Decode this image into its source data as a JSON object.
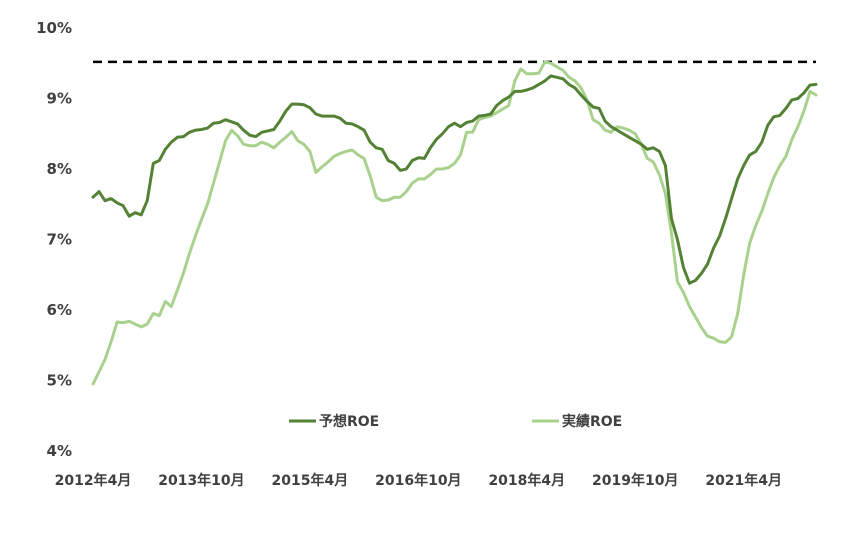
{
  "chart_data": {
    "type": "line",
    "title": "",
    "xlabel": "",
    "ylabel": "",
    "ylim": [
      4,
      10
    ],
    "xlim": [
      "2012-04",
      "2022-03"
    ],
    "yticks": [
      "4%",
      "5%",
      "6%",
      "7%",
      "8%",
      "9%",
      "10%"
    ],
    "xticks": [
      {
        "label": "2012年4月",
        "date": "2012-04"
      },
      {
        "label": "2013年10月",
        "date": "2013-10"
      },
      {
        "label": "2015年4月",
        "date": "2015-04"
      },
      {
        "label": "2016年10月",
        "date": "2016-10"
      },
      {
        "label": "2018年4月",
        "date": "2018-04"
      },
      {
        "label": "2019年10月",
        "date": "2019-10"
      },
      {
        "label": "2021年4月",
        "date": "2021-04"
      }
    ],
    "grid": false,
    "legend_position": "bottom-center",
    "reference_line": {
      "y": 9.52,
      "style": "dashed",
      "color": "#000000"
    },
    "series": [
      {
        "name": "予想ROE",
        "color": "#548235",
        "points": [
          [
            "2012-04",
            7.6
          ],
          [
            "2012-05",
            7.68
          ],
          [
            "2012-06",
            7.55
          ],
          [
            "2012-07",
            7.58
          ],
          [
            "2012-08",
            7.52
          ],
          [
            "2012-09",
            7.48
          ],
          [
            "2012-10",
            7.33
          ],
          [
            "2012-11",
            7.38
          ],
          [
            "2012-12",
            7.35
          ],
          [
            "2013-01",
            7.55
          ],
          [
            "2013-02",
            8.08
          ],
          [
            "2013-03",
            8.12
          ],
          [
            "2013-04",
            8.28
          ],
          [
            "2013-05",
            8.38
          ],
          [
            "2013-06",
            8.45
          ],
          [
            "2013-07",
            8.46
          ],
          [
            "2013-08",
            8.52
          ],
          [
            "2013-09",
            8.55
          ],
          [
            "2013-10",
            8.56
          ],
          [
            "2013-11",
            8.58
          ],
          [
            "2013-12",
            8.65
          ],
          [
            "2014-01",
            8.66
          ],
          [
            "2014-02",
            8.7
          ],
          [
            "2014-03",
            8.67
          ],
          [
            "2014-04",
            8.64
          ],
          [
            "2014-05",
            8.55
          ],
          [
            "2014-06",
            8.48
          ],
          [
            "2014-07",
            8.46
          ],
          [
            "2014-08",
            8.52
          ],
          [
            "2014-09",
            8.54
          ],
          [
            "2014-10",
            8.56
          ],
          [
            "2014-11",
            8.68
          ],
          [
            "2014-12",
            8.82
          ],
          [
            "2015-01",
            8.92
          ],
          [
            "2015-02",
            8.92
          ],
          [
            "2015-03",
            8.91
          ],
          [
            "2015-04",
            8.87
          ],
          [
            "2015-05",
            8.78
          ],
          [
            "2015-06",
            8.75
          ],
          [
            "2015-07",
            8.75
          ],
          [
            "2015-08",
            8.75
          ],
          [
            "2015-09",
            8.72
          ],
          [
            "2015-10",
            8.65
          ],
          [
            "2015-11",
            8.64
          ],
          [
            "2015-12",
            8.6
          ],
          [
            "2016-01",
            8.55
          ],
          [
            "2016-02",
            8.38
          ],
          [
            "2016-03",
            8.3
          ],
          [
            "2016-04",
            8.28
          ],
          [
            "2016-05",
            8.12
          ],
          [
            "2016-06",
            8.08
          ],
          [
            "2016-07",
            7.98
          ],
          [
            "2016-08",
            8.0
          ],
          [
            "2016-09",
            8.12
          ],
          [
            "2016-10",
            8.16
          ],
          [
            "2016-11",
            8.15
          ],
          [
            "2016-12",
            8.3
          ],
          [
            "2017-01",
            8.42
          ],
          [
            "2017-02",
            8.5
          ],
          [
            "2017-03",
            8.6
          ],
          [
            "2017-04",
            8.65
          ],
          [
            "2017-05",
            8.6
          ],
          [
            "2017-06",
            8.66
          ],
          [
            "2017-07",
            8.68
          ],
          [
            "2017-08",
            8.75
          ],
          [
            "2017-09",
            8.76
          ],
          [
            "2017-10",
            8.78
          ],
          [
            "2017-11",
            8.9
          ],
          [
            "2017-12",
            8.97
          ],
          [
            "2018-01",
            9.02
          ],
          [
            "2018-02",
            9.1
          ],
          [
            "2018-03",
            9.1
          ],
          [
            "2018-04",
            9.12
          ],
          [
            "2018-05",
            9.15
          ],
          [
            "2018-06",
            9.2
          ],
          [
            "2018-07",
            9.25
          ],
          [
            "2018-08",
            9.32
          ],
          [
            "2018-09",
            9.3
          ],
          [
            "2018-10",
            9.28
          ],
          [
            "2018-11",
            9.2
          ],
          [
            "2018-12",
            9.15
          ],
          [
            "2019-01",
            9.05
          ],
          [
            "2019-02",
            8.96
          ],
          [
            "2019-03",
            8.88
          ],
          [
            "2019-04",
            8.86
          ],
          [
            "2019-05",
            8.68
          ],
          [
            "2019-06",
            8.6
          ],
          [
            "2019-07",
            8.55
          ],
          [
            "2019-08",
            8.5
          ],
          [
            "2019-09",
            8.45
          ],
          [
            "2019-10",
            8.4
          ],
          [
            "2019-11",
            8.35
          ],
          [
            "2019-12",
            8.28
          ],
          [
            "2020-01",
            8.3
          ],
          [
            "2020-02",
            8.25
          ],
          [
            "2020-03",
            8.05
          ],
          [
            "2020-04",
            7.3
          ],
          [
            "2020-05",
            7.0
          ],
          [
            "2020-06",
            6.6
          ],
          [
            "2020-07",
            6.38
          ],
          [
            "2020-08",
            6.42
          ],
          [
            "2020-09",
            6.52
          ],
          [
            "2020-10",
            6.65
          ],
          [
            "2020-11",
            6.88
          ],
          [
            "2020-12",
            7.05
          ],
          [
            "2021-01",
            7.3
          ],
          [
            "2021-02",
            7.58
          ],
          [
            "2021-03",
            7.86
          ],
          [
            "2021-04",
            8.05
          ],
          [
            "2021-05",
            8.2
          ],
          [
            "2021-06",
            8.25
          ],
          [
            "2021-07",
            8.38
          ],
          [
            "2021-08",
            8.62
          ],
          [
            "2021-09",
            8.74
          ],
          [
            "2021-10",
            8.76
          ],
          [
            "2021-11",
            8.86
          ],
          [
            "2021-12",
            8.98
          ],
          [
            "2022-01",
            9.0
          ],
          [
            "2022-02",
            9.08
          ],
          [
            "2022-03",
            9.19
          ],
          [
            "2022-04",
            9.2
          ]
        ]
      },
      {
        "name": "実績ROE",
        "color": "#A9D18E",
        "points": [
          [
            "2012-04",
            4.95
          ],
          [
            "2012-05",
            5.12
          ],
          [
            "2012-06",
            5.3
          ],
          [
            "2012-07",
            5.55
          ],
          [
            "2012-08",
            5.83
          ],
          [
            "2012-09",
            5.82
          ],
          [
            "2012-10",
            5.84
          ],
          [
            "2012-11",
            5.8
          ],
          [
            "2012-12",
            5.76
          ],
          [
            "2013-01",
            5.8
          ],
          [
            "2013-02",
            5.95
          ],
          [
            "2013-03",
            5.92
          ],
          [
            "2013-04",
            6.12
          ],
          [
            "2013-05",
            6.05
          ],
          [
            "2013-06",
            6.28
          ],
          [
            "2013-07",
            6.52
          ],
          [
            "2013-08",
            6.8
          ],
          [
            "2013-09",
            7.05
          ],
          [
            "2013-10",
            7.28
          ],
          [
            "2013-11",
            7.5
          ],
          [
            "2013-12",
            7.8
          ],
          [
            "2014-01",
            8.1
          ],
          [
            "2014-02",
            8.4
          ],
          [
            "2014-03",
            8.55
          ],
          [
            "2014-04",
            8.47
          ],
          [
            "2014-05",
            8.35
          ],
          [
            "2014-06",
            8.33
          ],
          [
            "2014-07",
            8.33
          ],
          [
            "2014-08",
            8.38
          ],
          [
            "2014-09",
            8.35
          ],
          [
            "2014-10",
            8.3
          ],
          [
            "2014-11",
            8.38
          ],
          [
            "2014-12",
            8.45
          ],
          [
            "2015-01",
            8.53
          ],
          [
            "2015-02",
            8.4
          ],
          [
            "2015-03",
            8.35
          ],
          [
            "2015-04",
            8.25
          ],
          [
            "2015-05",
            7.95
          ],
          [
            "2015-06",
            8.03
          ],
          [
            "2015-07",
            8.1
          ],
          [
            "2015-08",
            8.18
          ],
          [
            "2015-09",
            8.22
          ],
          [
            "2015-10",
            8.25
          ],
          [
            "2015-11",
            8.27
          ],
          [
            "2015-12",
            8.2
          ],
          [
            "2016-01",
            8.15
          ],
          [
            "2016-02",
            7.9
          ],
          [
            "2016-03",
            7.6
          ],
          [
            "2016-04",
            7.55
          ],
          [
            "2016-05",
            7.56
          ],
          [
            "2016-06",
            7.6
          ],
          [
            "2016-07",
            7.6
          ],
          [
            "2016-08",
            7.68
          ],
          [
            "2016-09",
            7.8
          ],
          [
            "2016-10",
            7.86
          ],
          [
            "2016-11",
            7.86
          ],
          [
            "2016-12",
            7.92
          ],
          [
            "2017-01",
            8.0
          ],
          [
            "2017-02",
            8.0
          ],
          [
            "2017-03",
            8.02
          ],
          [
            "2017-04",
            8.08
          ],
          [
            "2017-05",
            8.2
          ],
          [
            "2017-06",
            8.52
          ],
          [
            "2017-07",
            8.52
          ],
          [
            "2017-08",
            8.7
          ],
          [
            "2017-09",
            8.73
          ],
          [
            "2017-10",
            8.75
          ],
          [
            "2017-11",
            8.8
          ],
          [
            "2017-12",
            8.85
          ],
          [
            "2018-01",
            8.9
          ],
          [
            "2018-02",
            9.25
          ],
          [
            "2018-03",
            9.42
          ],
          [
            "2018-04",
            9.35
          ],
          [
            "2018-05",
            9.35
          ],
          [
            "2018-06",
            9.36
          ],
          [
            "2018-07",
            9.52
          ],
          [
            "2018-08",
            9.5
          ],
          [
            "2018-09",
            9.45
          ],
          [
            "2018-10",
            9.4
          ],
          [
            "2018-11",
            9.3
          ],
          [
            "2018-12",
            9.25
          ],
          [
            "2019-01",
            9.15
          ],
          [
            "2019-02",
            8.98
          ],
          [
            "2019-03",
            8.7
          ],
          [
            "2019-04",
            8.65
          ],
          [
            "2019-05",
            8.55
          ],
          [
            "2019-06",
            8.52
          ],
          [
            "2019-07",
            8.6
          ],
          [
            "2019-08",
            8.58
          ],
          [
            "2019-09",
            8.55
          ],
          [
            "2019-10",
            8.5
          ],
          [
            "2019-11",
            8.35
          ],
          [
            "2019-12",
            8.15
          ],
          [
            "2020-01",
            8.1
          ],
          [
            "2020-02",
            7.92
          ],
          [
            "2020-03",
            7.65
          ],
          [
            "2020-04",
            7.1
          ],
          [
            "2020-05",
            6.4
          ],
          [
            "2020-06",
            6.25
          ],
          [
            "2020-07",
            6.05
          ],
          [
            "2020-08",
            5.9
          ],
          [
            "2020-09",
            5.75
          ],
          [
            "2020-10",
            5.63
          ],
          [
            "2020-11",
            5.6
          ],
          [
            "2020-12",
            5.55
          ],
          [
            "2021-01",
            5.54
          ],
          [
            "2021-02",
            5.62
          ],
          [
            "2021-03",
            5.95
          ],
          [
            "2021-04",
            6.5
          ],
          [
            "2021-05",
            6.95
          ],
          [
            "2021-06",
            7.2
          ],
          [
            "2021-07",
            7.4
          ],
          [
            "2021-08",
            7.65
          ],
          [
            "2021-09",
            7.88
          ],
          [
            "2021-10",
            8.05
          ],
          [
            "2021-11",
            8.18
          ],
          [
            "2021-12",
            8.42
          ],
          [
            "2022-01",
            8.6
          ],
          [
            "2022-02",
            8.82
          ],
          [
            "2022-03",
            9.1
          ],
          [
            "2022-04",
            9.05
          ]
        ]
      }
    ]
  }
}
